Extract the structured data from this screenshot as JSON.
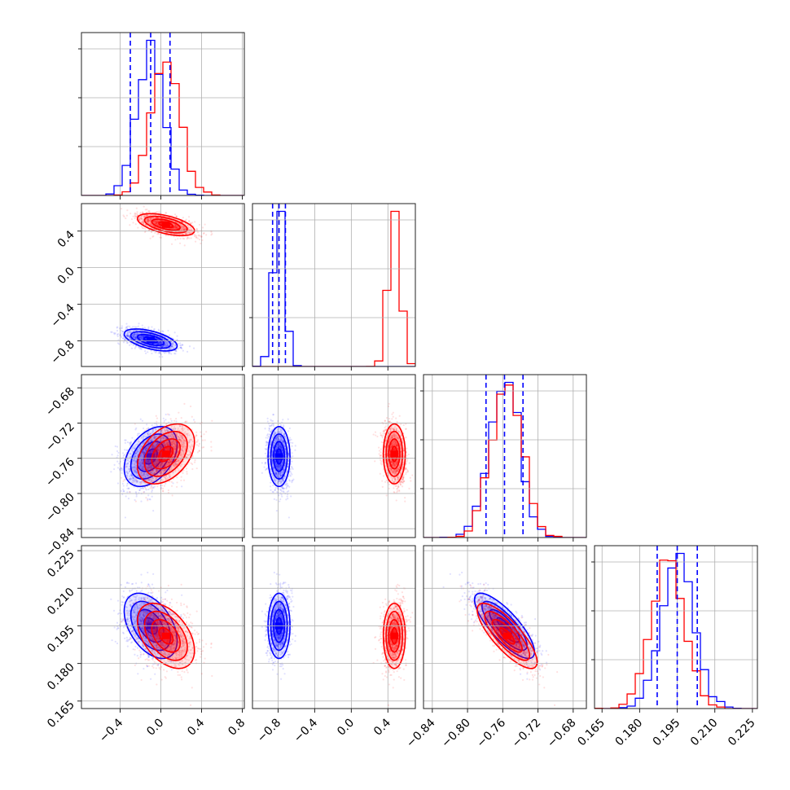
{
  "chart_data": {
    "type": "corner",
    "parameters": [
      {
        "ticks": [
          -0.4,
          0.0,
          0.4,
          0.8
        ],
        "tick_labels": [
          "−0.4",
          "0.0",
          "0.4",
          "0.8"
        ],
        "range": [
          -0.78,
          0.82
        ]
      },
      {
        "ticks": [
          -0.8,
          -0.4,
          0.0,
          0.4
        ],
        "tick_labels": [
          "−0.8",
          "−0.4",
          "0.0",
          "0.4"
        ],
        "range": [
          -1.08,
          0.7
        ]
      },
      {
        "ticks": [
          -0.84,
          -0.8,
          -0.76,
          -0.72,
          -0.68
        ],
        "tick_labels": [
          "−0.84",
          "−0.80",
          "−0.76",
          "−0.72",
          "−0.68"
        ],
        "range": [
          -0.85,
          -0.665
        ]
      },
      {
        "ticks": [
          0.165,
          0.18,
          0.195,
          0.21,
          0.225
        ],
        "tick_labels": [
          "0.165",
          "0.180",
          "0.195",
          "0.210",
          "0.225"
        ],
        "range": [
          0.162,
          0.227
        ]
      }
    ],
    "series": [
      {
        "color": "#0000ff",
        "means": [
          -0.1,
          -0.79,
          -0.758,
          0.195
        ],
        "sds": [
          0.13,
          0.06,
          0.017,
          0.0065
        ],
        "quantile_lines": [
          [
            -0.3,
            -0.1,
            0.09
          ],
          [
            -0.86,
            -0.79,
            -0.72
          ],
          [
            -0.779,
            -0.758,
            -0.737
          ],
          [
            0.187,
            0.195,
            0.203
          ]
        ]
      },
      {
        "color": "#ff0000",
        "means": [
          0.05,
          0.47,
          -0.755,
          0.191
        ],
        "sds": [
          0.14,
          0.06,
          0.017,
          0.0065
        ],
        "quantile_lines": null
      }
    ],
    "correlations": {
      "blue": {
        "1_0": -0.55,
        "2_0": 0.4,
        "2_1": 0.0,
        "3_0": -0.45,
        "3_1": 0.0,
        "3_2": -0.8
      },
      "red": {
        "1_0": -0.55,
        "2_0": 0.4,
        "2_1": 0.0,
        "3_0": -0.45,
        "3_1": 0.0,
        "3_2": -0.8
      }
    },
    "grid": true,
    "quantile_line_color": "#0000ff",
    "quantile_line_style": "dashed"
  }
}
